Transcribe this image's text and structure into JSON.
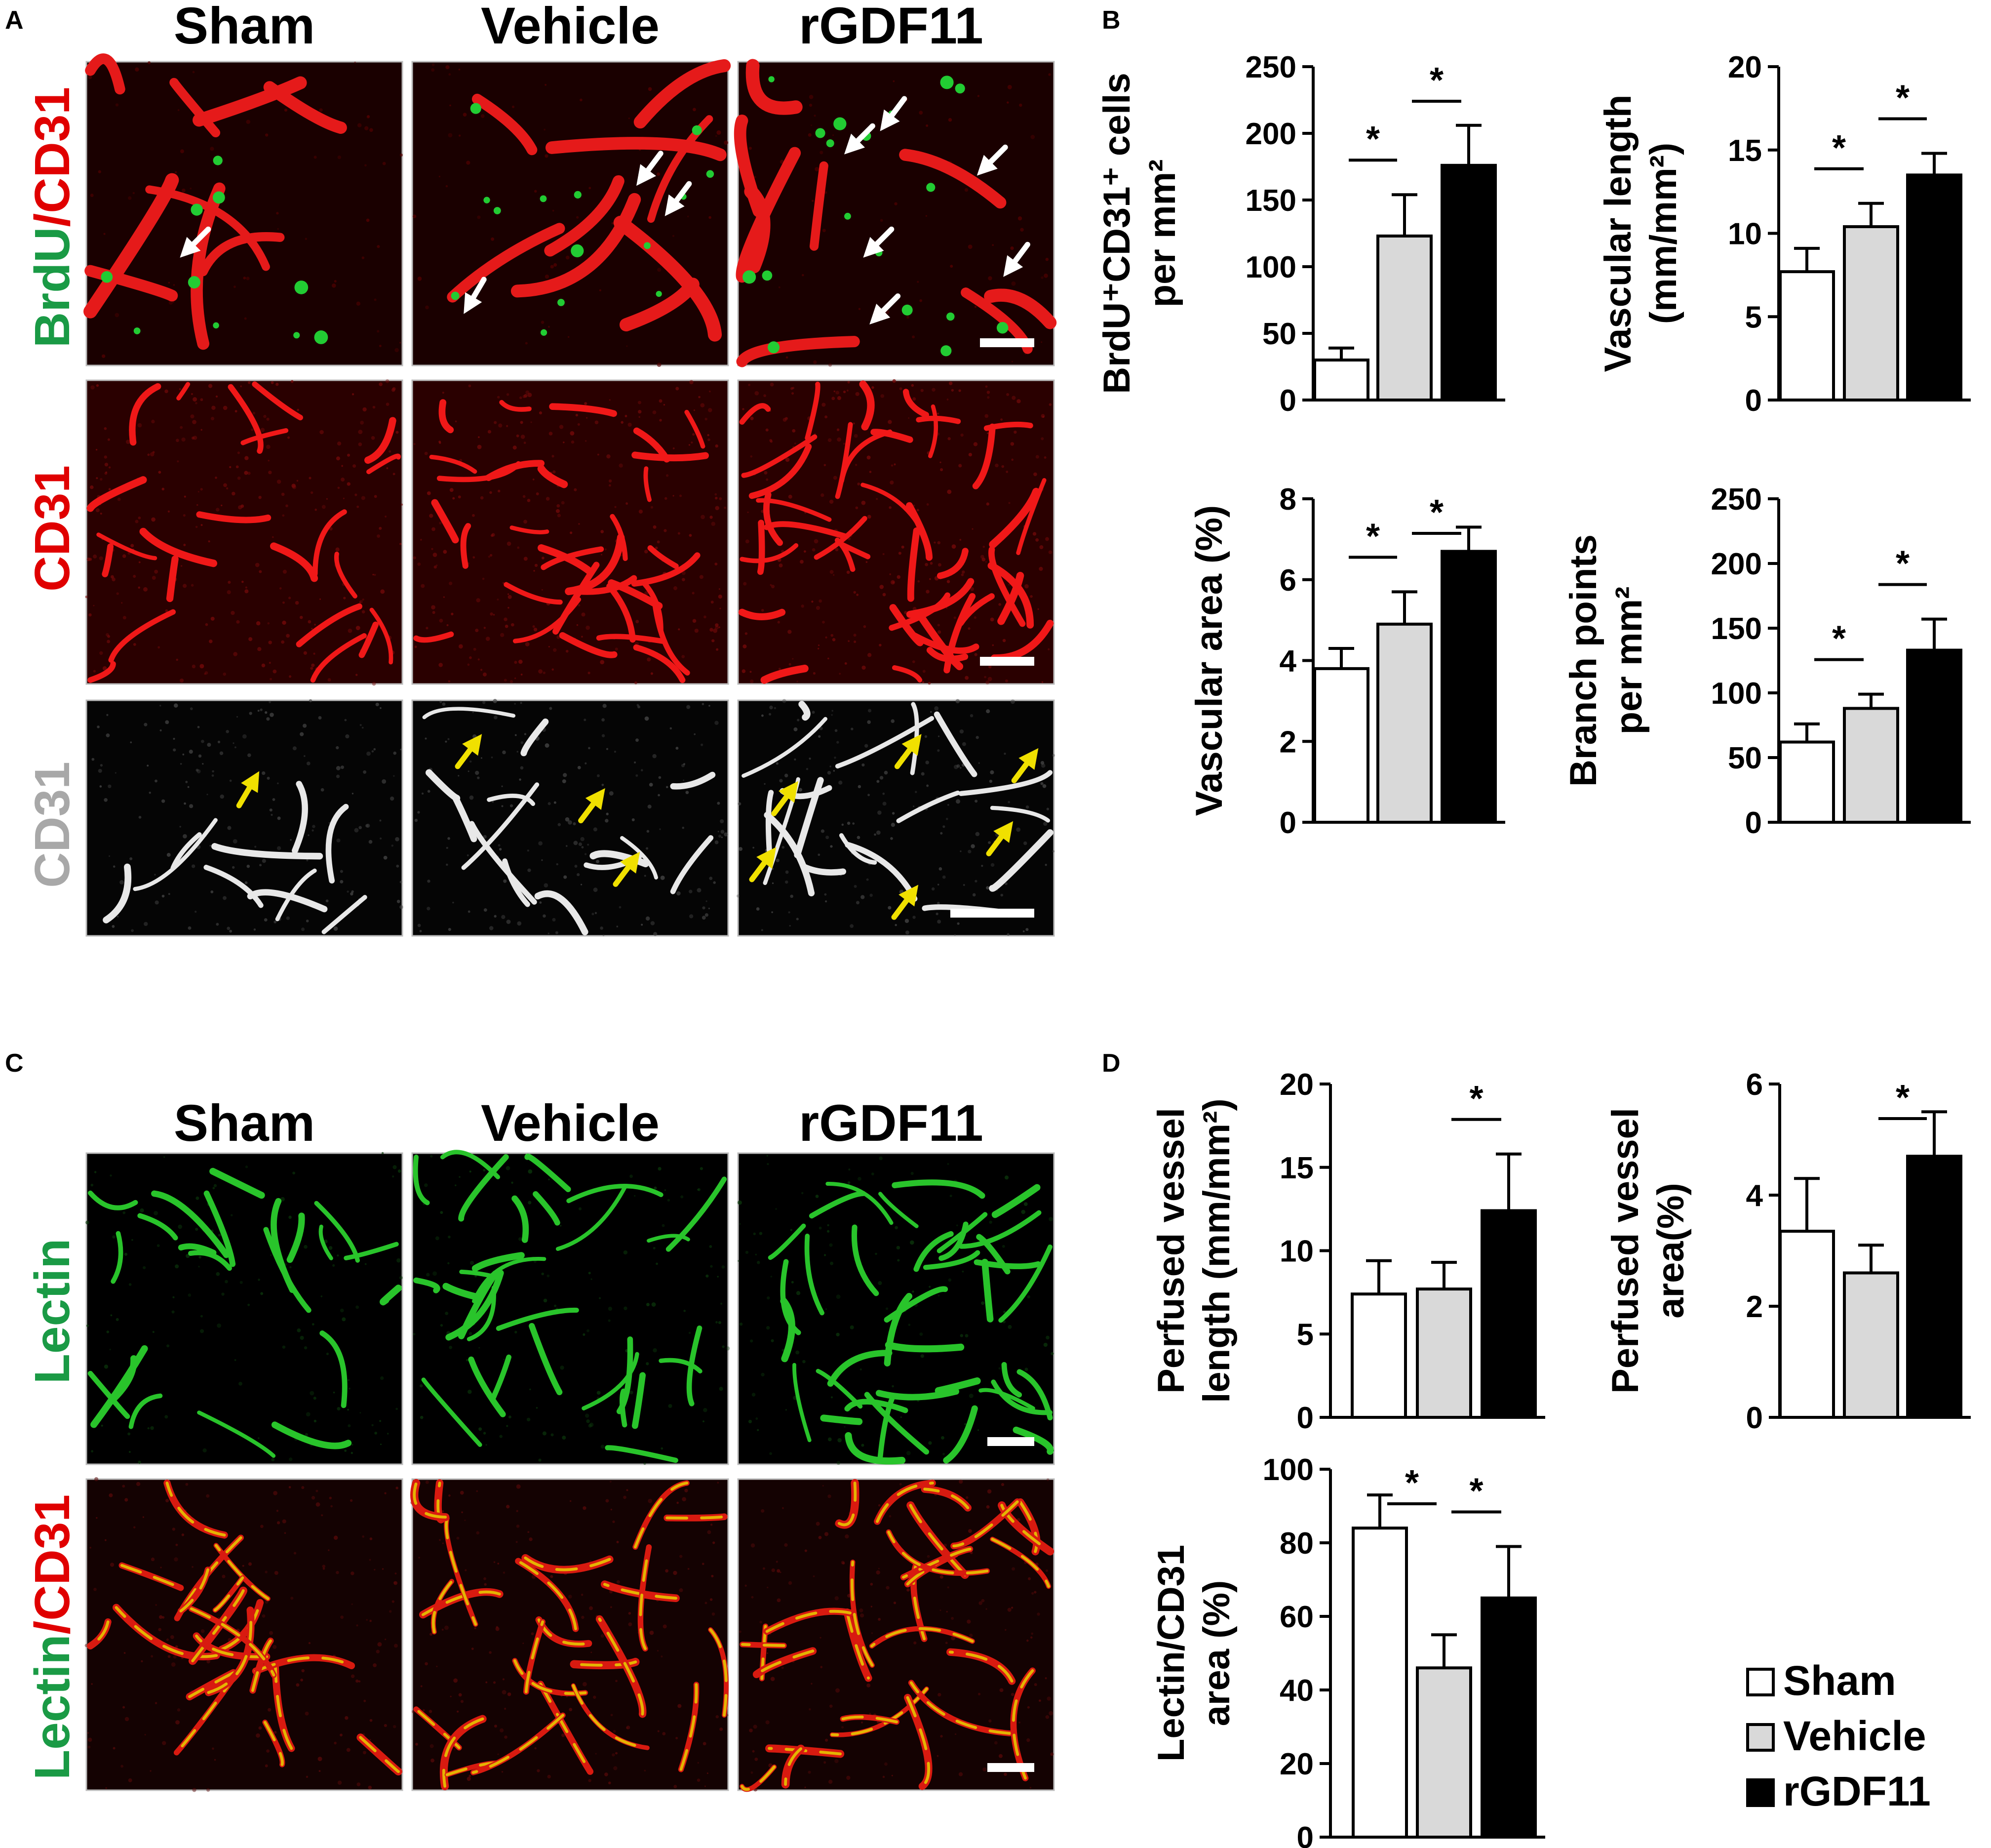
{
  "panel_labels": {
    "A": "A",
    "B": "B",
    "C": "C",
    "D": "D"
  },
  "panel_a": {
    "columns": [
      "Sham",
      "Vehicle",
      "rGDF11"
    ],
    "row1_label_part1": "BrdU",
    "row1_label_sep": "/",
    "row1_label_part2": "CD31",
    "row2_label": "CD31",
    "row3_label": "CD31",
    "colors": {
      "green": "#1a9a45",
      "red": "#e00000",
      "gray": "#a8a8a8",
      "arrow_yellow": "#f0e000"
    }
  },
  "panel_c": {
    "columns": [
      "Sham",
      "Vehicle",
      "rGDF11"
    ],
    "row1_label": "Lectin",
    "row2_label_part1": "Lectin",
    "row2_label_sep": "/",
    "row2_label_part2": "CD31"
  },
  "legend": {
    "items": [
      {
        "label": "Sham",
        "color": "#ffffff"
      },
      {
        "label": "Vehicle",
        "color": "#d9d9d9"
      },
      {
        "label": "rGDF11",
        "color": "#000000"
      }
    ]
  },
  "chart_data": [
    {
      "id": "b1",
      "type": "bar",
      "ylabel": [
        "BrdU⁺CD31⁺ cells",
        "per mm²"
      ],
      "categories": [
        "Sham",
        "Vehicle",
        "rGDF11"
      ],
      "values": [
        30,
        123,
        176
      ],
      "errors": [
        9,
        31,
        30
      ],
      "ylim": [
        0,
        250
      ],
      "yticks": [
        "0",
        "50",
        "100",
        "150",
        "200",
        "250"
      ],
      "ytick_values": [
        0,
        50,
        100,
        150,
        200,
        250
      ],
      "significance": [
        [
          "Sham",
          "Vehicle"
        ],
        [
          "Vehicle",
          "rGDF11"
        ]
      ],
      "sig_label": "*"
    },
    {
      "id": "b2",
      "type": "bar",
      "ylabel": [
        "Vascular length",
        "(mm/mm²)"
      ],
      "categories": [
        "Sham",
        "Vehicle",
        "rGDF11"
      ],
      "values": [
        7.7,
        10.4,
        13.5
      ],
      "errors": [
        1.4,
        1.4,
        1.3
      ],
      "ylim": [
        0,
        20
      ],
      "yticks": [
        "0",
        "5",
        "10",
        "15",
        "20"
      ],
      "ytick_values": [
        0,
        5,
        10,
        15,
        20
      ],
      "significance": [
        [
          "Sham",
          "Vehicle"
        ],
        [
          "Vehicle",
          "rGDF11"
        ]
      ],
      "sig_label": "*"
    },
    {
      "id": "b3",
      "type": "bar",
      "ylabel": [
        "Vascular area (%)"
      ],
      "categories": [
        "Sham",
        "Vehicle",
        "rGDF11"
      ],
      "values": [
        3.8,
        4.9,
        6.7
      ],
      "errors": [
        0.5,
        0.8,
        0.6
      ],
      "ylim": [
        0,
        8
      ],
      "yticks": [
        "0",
        "2",
        "4",
        "6",
        "8"
      ],
      "ytick_values": [
        0,
        2,
        4,
        6,
        8
      ],
      "significance": [
        [
          "Sham",
          "Vehicle"
        ],
        [
          "Vehicle",
          "rGDF11"
        ]
      ],
      "sig_label": "*"
    },
    {
      "id": "b4",
      "type": "bar",
      "ylabel": [
        "Branch points",
        "per mm²"
      ],
      "categories": [
        "Sham",
        "Vehicle",
        "rGDF11"
      ],
      "values": [
        62,
        88,
        133
      ],
      "errors": [
        14,
        11,
        24
      ],
      "ylim": [
        0,
        250
      ],
      "yticks": [
        "0",
        "50",
        "100",
        "150",
        "200",
        "250"
      ],
      "ytick_values": [
        0,
        50,
        100,
        150,
        200,
        250
      ],
      "significance": [
        [
          "Sham",
          "Vehicle"
        ],
        [
          "Vehicle",
          "rGDF11"
        ]
      ],
      "sig_label": "*"
    },
    {
      "id": "d1",
      "type": "bar",
      "ylabel": [
        "Perfused vessel",
        "length (mm/mm²)"
      ],
      "categories": [
        "Sham",
        "Vehicle",
        "rGDF11"
      ],
      "values": [
        7.4,
        7.7,
        12.4
      ],
      "errors": [
        2.0,
        1.6,
        3.4
      ],
      "ylim": [
        0,
        20
      ],
      "yticks": [
        "0",
        "5",
        "10",
        "15",
        "20"
      ],
      "ytick_values": [
        0,
        5,
        10,
        15,
        20
      ],
      "significance": [
        [
          "Vehicle",
          "rGDF11"
        ]
      ],
      "sig_label": "*"
    },
    {
      "id": "d2",
      "type": "bar",
      "ylabel": [
        "Perfused  vessel",
        "area(%)"
      ],
      "categories": [
        "Sham",
        "Vehicle",
        "rGDF11"
      ],
      "values": [
        3.35,
        2.6,
        4.7
      ],
      "errors": [
        0.95,
        0.5,
        0.8
      ],
      "ylim": [
        0,
        6
      ],
      "yticks": [
        "0",
        "2",
        "4",
        "6"
      ],
      "ytick_values": [
        0,
        2,
        4,
        6
      ],
      "significance": [
        [
          "Vehicle",
          "rGDF11"
        ]
      ],
      "sig_label": "*"
    },
    {
      "id": "d3",
      "type": "bar",
      "ylabel": [
        "Lectin/CD31",
        "area (%)"
      ],
      "categories": [
        "Sham",
        "Vehicle",
        "rGDF11"
      ],
      "values": [
        84,
        46,
        65
      ],
      "errors": [
        9,
        9,
        14
      ],
      "ylim": [
        0,
        100
      ],
      "yticks": [
        "0",
        "20",
        "40",
        "60",
        "80",
        "100"
      ],
      "ytick_values": [
        0,
        20,
        40,
        60,
        80,
        100
      ],
      "significance": [
        [
          "Sham",
          "Vehicle"
        ],
        [
          "Vehicle",
          "rGDF11"
        ]
      ],
      "sig_label": "*"
    }
  ]
}
